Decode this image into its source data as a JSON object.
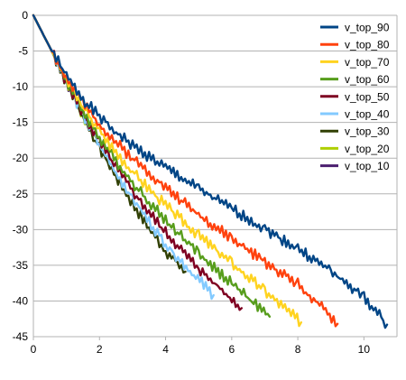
{
  "chart_data": {
    "type": "line",
    "title": "",
    "xlabel": "",
    "ylabel": "",
    "xlim": [
      0,
      11
    ],
    "ylim": [
      -45,
      0
    ],
    "x_ticks": [
      0,
      2,
      4,
      6,
      8,
      10
    ],
    "x_tick_labels": [
      "0",
      "2",
      "4",
      "6",
      "8",
      "10"
    ],
    "y_ticks": [
      0,
      -5,
      -10,
      -15,
      -20,
      -25,
      -30,
      -35,
      -40,
      -45
    ],
    "y_tick_labels": [
      "0",
      "-5",
      "-10",
      "-15",
      "-20",
      "-25",
      "-30",
      "-35",
      "-40",
      "-45"
    ],
    "grid": "horizontal",
    "legend_position": "top-right",
    "series": [
      {
        "name": "v_top_90",
        "color": "#004586",
        "x": [
          0,
          0.5,
          1.0,
          1.5,
          2.0,
          2.5,
          3.0,
          3.5,
          4.0,
          5.0,
          6.0,
          7.0,
          8.0,
          9.0,
          10.0,
          10.7
        ],
        "y": [
          0,
          -4.5,
          -8.5,
          -11.7,
          -14.2,
          -16.4,
          -18.2,
          -19.8,
          -21.3,
          -24.3,
          -27.1,
          -29.9,
          -32.7,
          -35.8,
          -39.5,
          -43.3
        ]
      },
      {
        "name": "v_top_80",
        "color": "#ff420e",
        "x": [
          0,
          0.5,
          1.0,
          1.5,
          2.0,
          2.5,
          3.0,
          3.5,
          4.0,
          5.0,
          6.0,
          7.0,
          8.0,
          9.2
        ],
        "y": [
          0,
          -4.5,
          -8.8,
          -12.3,
          -15.2,
          -17.8,
          -20.0,
          -22.0,
          -24.1,
          -27.9,
          -31.3,
          -34.5,
          -37.6,
          -43.2
        ]
      },
      {
        "name": "v_top_70",
        "color": "#ffd320",
        "x": [
          0,
          0.5,
          1.0,
          1.5,
          2.0,
          2.5,
          3.0,
          3.5,
          4.0,
          5.0,
          6.0,
          7.0,
          8.1
        ],
        "y": [
          0,
          -4.5,
          -9.0,
          -12.9,
          -16.2,
          -19.2,
          -21.9,
          -24.3,
          -26.6,
          -30.8,
          -34.7,
          -38.6,
          -43.0
        ]
      },
      {
        "name": "v_top_60",
        "color": "#579d1c",
        "x": [
          0,
          0.5,
          1.0,
          1.5,
          2.0,
          2.5,
          3.0,
          3.5,
          4.0,
          5.0,
          6.0,
          7.15
        ],
        "y": [
          0,
          -4.5,
          -9.1,
          -13.4,
          -17.1,
          -20.4,
          -23.4,
          -26.1,
          -28.7,
          -33.3,
          -37.6,
          -42.2
        ]
      },
      {
        "name": "v_top_50",
        "color": "#7e0021",
        "x": [
          0,
          0.5,
          1.0,
          1.5,
          2.0,
          2.5,
          3.0,
          3.5,
          4.0,
          5.0,
          6.3
        ],
        "y": [
          0,
          -4.5,
          -9.2,
          -13.7,
          -17.7,
          -21.3,
          -24.6,
          -27.6,
          -30.4,
          -35.5,
          -41.0
        ]
      },
      {
        "name": "v_top_40",
        "color": "#83caff",
        "x": [
          0,
          0.5,
          1.0,
          1.5,
          2.0,
          2.5,
          3.0,
          3.5,
          4.0,
          4.5,
          5.45
        ],
        "y": [
          0,
          -4.5,
          -9.3,
          -14.0,
          -18.2,
          -22.0,
          -25.6,
          -28.9,
          -32.0,
          -34.6,
          -39.2
        ]
      },
      {
        "name": "v_top_30",
        "color": "#314004",
        "x": [
          0,
          0.5,
          1.0,
          1.5,
          2.0,
          2.5,
          3.0,
          3.5,
          4.0,
          4.6
        ],
        "y": [
          0,
          -4.5,
          -9.4,
          -14.2,
          -18.6,
          -22.6,
          -26.4,
          -29.8,
          -33.0,
          -35.9
        ]
      },
      {
        "name": "v_top_20",
        "color": "#aecf00",
        "x": [
          0,
          0.5,
          1.0,
          1.5,
          1.9
        ],
        "y": [
          0,
          -4.5,
          -9.4,
          -14.1,
          -17.2
        ]
      },
      {
        "name": "v_top_10",
        "color": "#4b1f6f",
        "x": [
          0,
          0.5,
          1.0,
          1.5,
          1.8
        ],
        "y": [
          0,
          -4.5,
          -9.4,
          -14.0,
          -16.5
        ]
      }
    ]
  }
}
